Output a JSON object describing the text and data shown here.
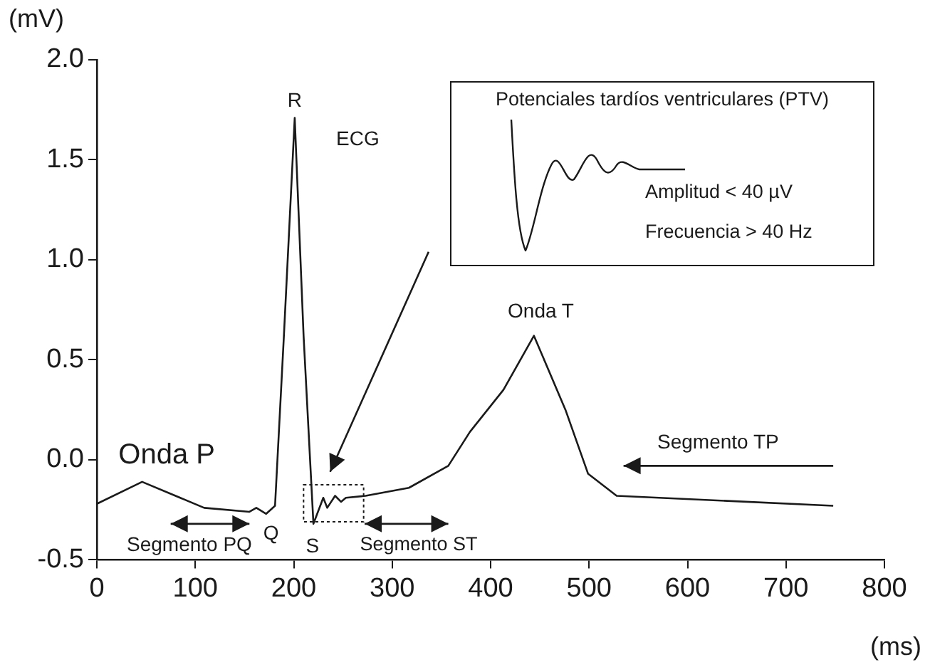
{
  "chart_data": {
    "type": "line",
    "xlabel": "(ms)",
    "ylabel": "(mV)",
    "x": [
      0,
      46,
      109,
      155,
      162,
      172,
      181,
      190,
      201,
      210,
      220,
      230,
      234,
      242,
      248,
      253,
      273,
      317,
      357,
      379,
      413,
      444,
      476,
      499,
      528,
      748
    ],
    "series": [
      {
        "color": "#1a1a1a",
        "values": [
          -0.22,
          -0.11,
          -0.24,
          -0.26,
          -0.24,
          -0.27,
          -0.23,
          0.62,
          1.71,
          0.62,
          -0.32,
          -0.19,
          -0.24,
          -0.18,
          -0.21,
          -0.19,
          -0.18,
          -0.14,
          -0.03,
          0.14,
          0.35,
          0.62,
          0.25,
          -0.07,
          -0.18,
          -0.23
        ]
      }
    ],
    "xlim": [
      0,
      800
    ],
    "xticks": [
      0,
      100,
      200,
      300,
      400,
      500,
      600,
      700,
      800
    ],
    "ylim": [
      -0.5,
      2.0
    ],
    "yticks": [
      {
        "value": -0.5,
        "label": "-0.5"
      },
      {
        "value": 0,
        "label": "0.0"
      },
      {
        "value": 0.5,
        "label": "0.5"
      },
      {
        "value": 1,
        "label": "1.0"
      },
      {
        "value": 1.5,
        "label": "1.5"
      },
      {
        "value": 2,
        "label": "2.0"
      }
    ],
    "grid": false,
    "legend": false,
    "marker": "none",
    "line_style": "solid",
    "annotations": [
      "Onda P",
      "R",
      "Q",
      "S",
      "Onda T",
      "Segmento PQ",
      "Segmento ST",
      "Segmento TP",
      "ECG",
      "Potenciales tardíos ventriculares (PTV)",
      "Amplitud < 40 µV",
      "Frecuencia > 40 Hz"
    ]
  }
}
